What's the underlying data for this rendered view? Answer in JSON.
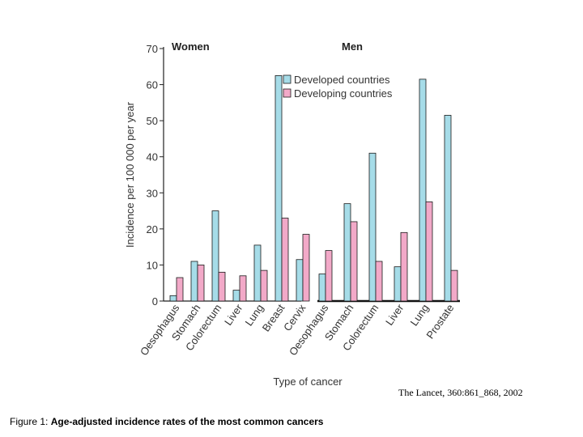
{
  "chart_data": {
    "type": "bar",
    "ylabel": "Incidence per 100 000 per year",
    "xlabel": "Type of cancer",
    "ylim": [
      0,
      70
    ],
    "yticks": [
      "0",
      "10",
      "20",
      "30",
      "40",
      "50",
      "60",
      "70"
    ],
    "legend": {
      "position": "top-center",
      "entries": [
        "Developed countries",
        "Developing countries"
      ]
    },
    "colors": {
      "developed": "#a6dce8",
      "developing": "#f2a9c8",
      "outline": "#1a1a1a"
    },
    "panels": [
      {
        "title": "Women",
        "categories": [
          "Oesophagus",
          "Stomach",
          "Colorectum",
          "Liver",
          "Lung",
          "Breast",
          "Cervix"
        ],
        "series": [
          {
            "name": "Developed countries",
            "values": [
              1.5,
              11,
              25,
              3,
              15.5,
              62.5,
              11.5
            ]
          },
          {
            "name": "Developing countries",
            "values": [
              6.5,
              10,
              8,
              7,
              8.5,
              23,
              18.5
            ]
          }
        ]
      },
      {
        "title": "Men",
        "categories": [
          "Oesophagus",
          "Stomach",
          "Colorectum",
          "Liver",
          "Lung",
          "Prostate"
        ],
        "series": [
          {
            "name": "Developed countries",
            "values": [
              7.5,
              27,
              41,
              9.5,
              61.5,
              51.5
            ]
          },
          {
            "name": "Developing countries",
            "values": [
              14,
              22,
              11,
              19,
              27.5,
              8.5
            ]
          }
        ]
      }
    ]
  },
  "citation": "The Lancet, 360:861_868, 2002",
  "caption": {
    "prefix": "Figure 1: ",
    "title": "Age-adjusted incidence rates of the most common cancers"
  }
}
